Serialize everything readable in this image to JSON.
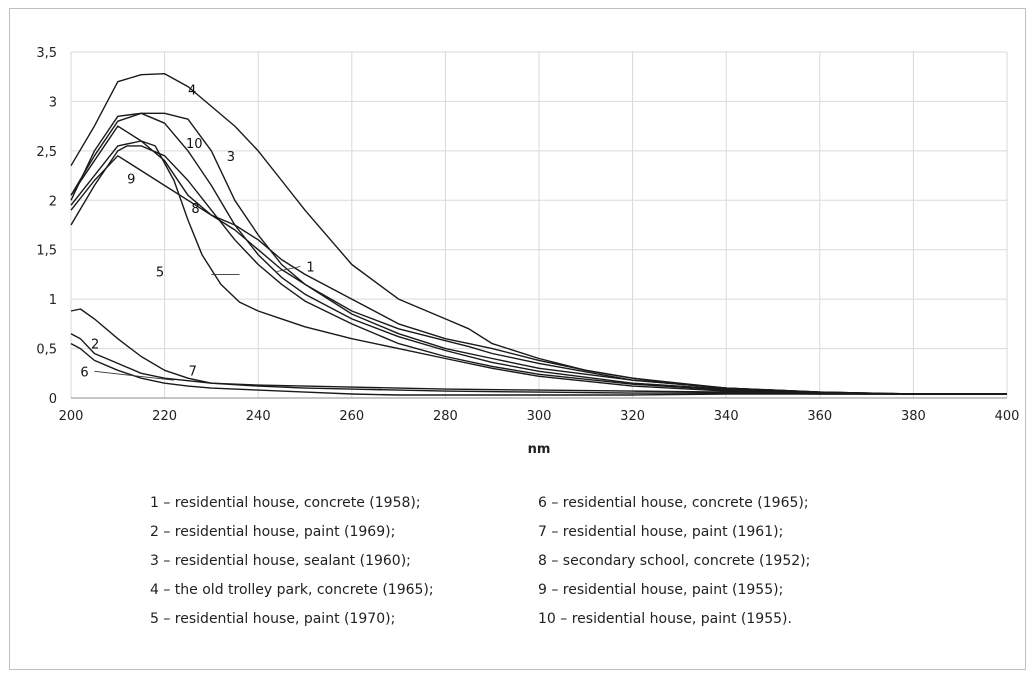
{
  "chart_data": {
    "type": "line",
    "title": "",
    "xlabel": "nm",
    "ylabel": "",
    "xlim": [
      200,
      400
    ],
    "ylim": [
      0,
      3.5
    ],
    "x_ticks": [
      200,
      220,
      240,
      260,
      280,
      300,
      320,
      340,
      360,
      380,
      400
    ],
    "y_ticks": [
      "0",
      "0,5",
      "1",
      "1,5",
      "2",
      "2,5",
      "3",
      "3,5"
    ],
    "grid": true,
    "line_color": "#1a1a1a",
    "series": [
      {
        "name": "1",
        "x": [
          200,
          205,
          210,
          215,
          220,
          225,
          230,
          235,
          240,
          245,
          250,
          260,
          270,
          280,
          285,
          290,
          300,
          310,
          320,
          330,
          340,
          350,
          360,
          370,
          380,
          390,
          400
        ],
        "y": [
          1.9,
          2.2,
          2.45,
          2.3,
          2.15,
          2.0,
          1.85,
          1.75,
          1.6,
          1.4,
          1.25,
          1.0,
          0.75,
          0.6,
          0.55,
          0.5,
          0.38,
          0.28,
          0.2,
          0.15,
          0.1,
          0.08,
          0.06,
          0.05,
          0.04,
          0.04,
          0.04
        ]
      },
      {
        "name": "2",
        "x": [
          200,
          202,
          205,
          210,
          215,
          220,
          230,
          240,
          250,
          260,
          280,
          300,
          320,
          340,
          360,
          380,
          400
        ],
        "y": [
          0.65,
          0.6,
          0.45,
          0.35,
          0.25,
          0.2,
          0.15,
          0.12,
          0.1,
          0.09,
          0.07,
          0.06,
          0.05,
          0.05,
          0.04,
          0.04,
          0.04
        ]
      },
      {
        "name": "3",
        "x": [
          200,
          205,
          210,
          215,
          220,
          225,
          230,
          235,
          240,
          245,
          250,
          260,
          270,
          280,
          290,
          300,
          320,
          340,
          360,
          380,
          400
        ],
        "y": [
          2.0,
          2.5,
          2.85,
          2.88,
          2.88,
          2.82,
          2.5,
          2.0,
          1.65,
          1.35,
          1.15,
          0.85,
          0.65,
          0.5,
          0.4,
          0.3,
          0.18,
          0.1,
          0.06,
          0.04,
          0.04
        ]
      },
      {
        "name": "4",
        "x": [
          200,
          205,
          210,
          215,
          220,
          225,
          230,
          235,
          240,
          245,
          250,
          260,
          270,
          280,
          285,
          290,
          300,
          310,
          320,
          330,
          340,
          350,
          360,
          370,
          380,
          390,
          400
        ],
        "y": [
          2.35,
          2.75,
          3.2,
          3.27,
          3.28,
          3.15,
          2.95,
          2.75,
          2.5,
          2.2,
          1.9,
          1.35,
          1.0,
          0.8,
          0.7,
          0.55,
          0.4,
          0.28,
          0.2,
          0.14,
          0.1,
          0.07,
          0.05,
          0.04,
          0.04,
          0.04,
          0.04
        ]
      },
      {
        "name": "5",
        "x": [
          200,
          205,
          210,
          215,
          218,
          222,
          225,
          228,
          232,
          236,
          240,
          245,
          250,
          260,
          270,
          280,
          290,
          300,
          320,
          340,
          360,
          380,
          400
        ],
        "y": [
          1.95,
          2.25,
          2.55,
          2.6,
          2.55,
          2.2,
          1.8,
          1.45,
          1.15,
          0.97,
          0.88,
          0.8,
          0.72,
          0.6,
          0.5,
          0.4,
          0.3,
          0.22,
          0.12,
          0.07,
          0.05,
          0.04,
          0.04
        ]
      },
      {
        "name": "6",
        "x": [
          200,
          202,
          205,
          210,
          215,
          220,
          225,
          230,
          240,
          250,
          260,
          270,
          280,
          300,
          320,
          340,
          360,
          380,
          400
        ],
        "y": [
          0.55,
          0.5,
          0.38,
          0.28,
          0.2,
          0.15,
          0.12,
          0.1,
          0.08,
          0.06,
          0.04,
          0.03,
          0.03,
          0.03,
          0.03,
          0.04,
          0.04,
          0.04,
          0.04
        ]
      },
      {
        "name": "7",
        "x": [
          200,
          202,
          205,
          210,
          215,
          220,
          225,
          230,
          240,
          250,
          260,
          280,
          300,
          320,
          340,
          360,
          380,
          400
        ],
        "y": [
          0.88,
          0.9,
          0.8,
          0.6,
          0.42,
          0.28,
          0.2,
          0.15,
          0.13,
          0.12,
          0.11,
          0.09,
          0.08,
          0.07,
          0.06,
          0.05,
          0.04,
          0.04
        ]
      },
      {
        "name": "8",
        "x": [
          200,
          205,
          210,
          215,
          220,
          225,
          230,
          235,
          240,
          245,
          250,
          260,
          270,
          280,
          285,
          290,
          300,
          320,
          340,
          360,
          380,
          400
        ],
        "y": [
          2.05,
          2.4,
          2.75,
          2.6,
          2.4,
          2.05,
          1.85,
          1.7,
          1.5,
          1.3,
          1.15,
          0.88,
          0.7,
          0.58,
          0.52,
          0.45,
          0.35,
          0.18,
          0.1,
          0.06,
          0.04,
          0.04
        ]
      },
      {
        "name": "9",
        "x": [
          200,
          205,
          210,
          212,
          215,
          220,
          225,
          230,
          235,
          240,
          245,
          250,
          260,
          270,
          280,
          290,
          300,
          320,
          340,
          360,
          380,
          400
        ],
        "y": [
          1.75,
          2.15,
          2.5,
          2.55,
          2.55,
          2.45,
          2.2,
          1.9,
          1.6,
          1.35,
          1.15,
          0.98,
          0.75,
          0.55,
          0.42,
          0.32,
          0.24,
          0.14,
          0.08,
          0.05,
          0.04,
          0.04
        ]
      },
      {
        "name": "10",
        "x": [
          200,
          205,
          210,
          215,
          220,
          225,
          230,
          235,
          240,
          245,
          250,
          260,
          270,
          280,
          290,
          300,
          320,
          340,
          360,
          380,
          400
        ],
        "y": [
          2.05,
          2.45,
          2.8,
          2.88,
          2.78,
          2.5,
          2.15,
          1.75,
          1.45,
          1.22,
          1.05,
          0.8,
          0.62,
          0.48,
          0.36,
          0.27,
          0.15,
          0.09,
          0.05,
          0.04,
          0.04
        ]
      }
    ],
    "annotations": [
      "1",
      "2",
      "3",
      "4",
      "5",
      "6",
      "7",
      "8",
      "9",
      "10"
    ],
    "legend": [
      "1 – residential house, concrete (1958);",
      "2 – residential house, paint (1969);",
      "3 – residential house, sealant (1960);",
      "4 – the old trolley park, concrete (1965);",
      "5 – residential house, paint (1970);",
      "6 – residential house, concrete (1965);",
      "7 – residential house, paint (1961);",
      "8 – secondary school, concrete (1952);",
      "9 – residential house, paint (1955);",
      "10 – residential house, paint (1955)."
    ]
  }
}
